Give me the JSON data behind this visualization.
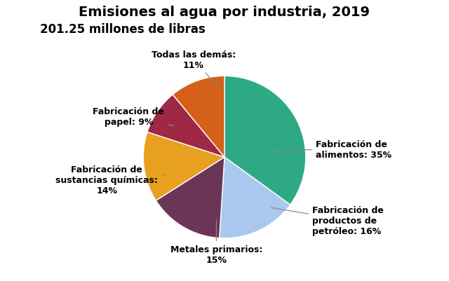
{
  "title": "Emisiones al agua por industria, 2019",
  "subtitle": "201.25 millones de libras",
  "slices": [
    {
      "label": "Fabricación de\nalimentos: 35%",
      "value": 35,
      "color": "#2DAA84"
    },
    {
      "label": "Fabricación de\nproductos de\npetróleo: 16%",
      "value": 16,
      "color": "#AAC8EE"
    },
    {
      "label": "Metales primarios:\n15%",
      "value": 15,
      "color": "#6B3558"
    },
    {
      "label": "Fabricación de\nsustancias químicas:\n14%",
      "value": 14,
      "color": "#E8A020"
    },
    {
      "label": "Fabricación de\npapel: 9%",
      "value": 9,
      "color": "#9E2846"
    },
    {
      "label": "Todas las demás:\n11%",
      "value": 11,
      "color": "#D4601A"
    }
  ],
  "background_color": "#FFFFFF",
  "title_fontsize": 14,
  "subtitle_fontsize": 12,
  "label_fontsize": 9,
  "label_fontweight": "bold"
}
